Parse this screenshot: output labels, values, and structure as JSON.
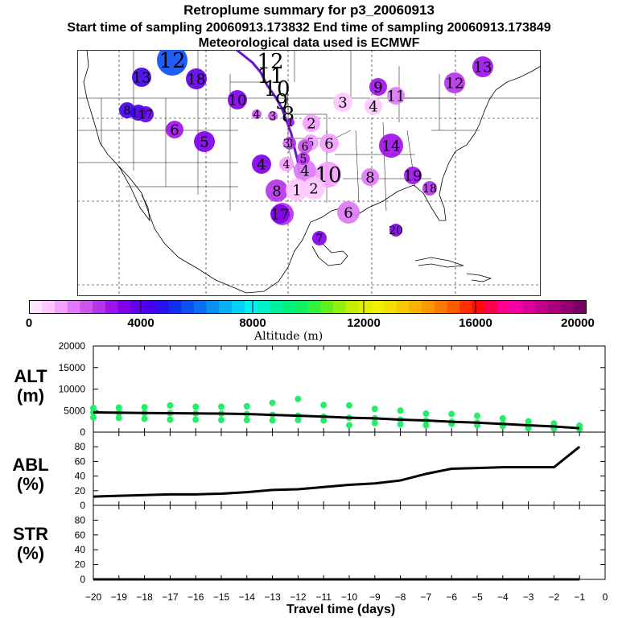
{
  "header": {
    "title": "Retroplume summary for p3_20060913",
    "sampling_line": "Start time of sampling 20060913.173832     End time of sampling 20060913.173849",
    "met_line": "Meteorological data used is ECMWF"
  },
  "map": {
    "markers": [
      {
        "label": "12",
        "alt": 5600
      },
      {
        "label": "13",
        "alt": 4300
      },
      {
        "label": "18",
        "alt": 3900
      },
      {
        "label": "10",
        "alt": 3500
      },
      {
        "label": "8",
        "alt": 4400
      },
      {
        "label": "14",
        "alt": 4200
      },
      {
        "label": "17",
        "alt": 3900
      },
      {
        "label": "6",
        "alt": 3000
      },
      {
        "label": "5",
        "alt": 3300
      },
      {
        "label": "4",
        "alt": 3300
      },
      {
        "label": "8",
        "alt": 2600
      },
      {
        "label": "7",
        "alt": 2700
      },
      {
        "label": "17",
        "alt": 3600
      },
      {
        "label": "12",
        "alt": 1800
      },
      {
        "label": "11",
        "alt": 1800
      },
      {
        "label": "10",
        "alt": 1700
      },
      {
        "label": "9",
        "alt": 1700
      },
      {
        "label": "8",
        "alt": 1700
      },
      {
        "label": "4",
        "alt": 2000
      },
      {
        "label": "3",
        "alt": 2000
      },
      {
        "label": "1",
        "alt": 2800
      },
      {
        "label": "3",
        "alt": 2500
      },
      {
        "label": "2",
        "alt": 1000
      },
      {
        "label": "3",
        "alt": 700
      },
      {
        "label": "4",
        "alt": 800
      },
      {
        "label": "9",
        "alt": 2800
      },
      {
        "label": "11",
        "alt": 1800
      },
      {
        "label": "13",
        "alt": 3100
      },
      {
        "label": "12",
        "alt": 2600
      },
      {
        "label": "14",
        "alt": 3000
      },
      {
        "label": "6",
        "alt": 1300
      },
      {
        "label": "5",
        "alt": 1000
      },
      {
        "label": "4",
        "alt": 1600
      },
      {
        "label": "10",
        "alt": 1100
      },
      {
        "label": "2",
        "alt": 900
      },
      {
        "label": "1",
        "alt": 800
      },
      {
        "label": "4",
        "alt": 1000
      },
      {
        "label": "8",
        "alt": 1800
      },
      {
        "label": "19",
        "alt": 3000
      },
      {
        "label": "18",
        "alt": 2400
      },
      {
        "label": "6",
        "alt": 1500
      },
      {
        "label": "20",
        "alt": 3400
      },
      {
        "label": "7",
        "alt": 3500
      },
      {
        "label": "6",
        "alt": 2000
      },
      {
        "label": "5",
        "alt": 2300
      },
      {
        "label": "3",
        "alt": 1700
      }
    ]
  },
  "colorbar": {
    "title": "Altitude (m)",
    "ticks": [
      "0",
      "4000",
      "8000",
      "12000",
      "16000",
      "20000"
    ],
    "colors": [
      "#ffe6ff",
      "#ffc8ff",
      "#f4a0ff",
      "#e07af8",
      "#cc55f0",
      "#b634ea",
      "#9f12ec",
      "#8200ea",
      "#6200ea",
      "#4700e8",
      "#2a10f0",
      "#1030f0",
      "#0e50f2",
      "#0a70f2",
      "#0a90f2",
      "#06b0f4",
      "#02d0f6",
      "#00f0f4",
      "#00f0c8",
      "#00f0a0",
      "#00f080",
      "#10f060",
      "#30f040",
      "#60f020",
      "#90f010",
      "#c0f000",
      "#e0f000",
      "#f0f000",
      "#f4e000",
      "#f8c800",
      "#fcb000",
      "#ff9800",
      "#ff7a00",
      "#ff5a00",
      "#ff3000",
      "#ff0a10",
      "#ff0050",
      "#ff0090",
      "#f000a8",
      "#d80098",
      "#c00088",
      "#a80078",
      "#900070",
      "#780060"
    ]
  },
  "chart_data": [
    {
      "type": "scatter+line",
      "panel": "altitude",
      "ylabel": "ALT\n(m)",
      "ylabel_lines": [
        "ALT",
        "(m)"
      ],
      "ylim": [
        0,
        20000
      ],
      "yticks": [
        "0",
        "5000",
        "10000",
        "15000",
        "20000"
      ],
      "x": [
        -20,
        -19,
        -18,
        -17,
        -16,
        -15,
        -14,
        -13,
        -12,
        -11,
        -10,
        -9,
        -8,
        -7,
        -6,
        -5,
        -4,
        -3,
        -2,
        -1
      ],
      "series": [
        {
          "name": "median altitude",
          "values": [
            4600,
            4500,
            4450,
            4400,
            4350,
            4300,
            4200,
            4000,
            3800,
            3600,
            3350,
            3200,
            2900,
            2700,
            2400,
            2200,
            1900,
            1600,
            1300,
            900
          ]
        },
        {
          "name": "upper altitude",
          "values": [
            5600,
            5700,
            5800,
            6200,
            5900,
            5900,
            6000,
            6800,
            7700,
            6300,
            6200,
            5400,
            5000,
            4300,
            4200,
            3800,
            3200,
            2500,
            2000,
            1500
          ]
        },
        {
          "name": "lower altitude",
          "values": [
            3400,
            3300,
            3100,
            2900,
            2900,
            2800,
            2800,
            2700,
            2800,
            2700,
            1600,
            2100,
            1800,
            1600,
            1900,
            1600,
            1400,
            900,
            800,
            700
          ]
        }
      ],
      "point_color": "#22ee66"
    },
    {
      "type": "line",
      "panel": "abl",
      "ylabel": "ABL\n(%)",
      "ylabel_lines": [
        "ABL",
        "(%)"
      ],
      "ylim": [
        0,
        100
      ],
      "yticks": [
        "0",
        "20",
        "40",
        "60",
        "80"
      ],
      "x": [
        -20,
        -19,
        -18,
        -17,
        -16,
        -15,
        -14,
        -13,
        -12,
        -11,
        -10,
        -9,
        -8,
        -7,
        -6,
        -5,
        -4,
        -3,
        -2,
        -1
      ],
      "values": [
        12,
        13,
        14,
        15,
        15,
        16,
        18,
        21,
        22,
        25,
        28,
        30,
        34,
        43,
        50,
        51,
        52,
        52,
        52,
        80
      ]
    },
    {
      "type": "line",
      "panel": "str",
      "ylabel": "STR\n(%)",
      "ylabel_lines": [
        "STR",
        "(%)"
      ],
      "ylim": [
        0,
        100
      ],
      "yticks": [
        "0",
        "20",
        "40",
        "60",
        "80"
      ],
      "x": [
        -20,
        -19,
        -18,
        -17,
        -16,
        -15,
        -14,
        -13,
        -12,
        -11,
        -10,
        -9,
        -8,
        -7,
        -6,
        -5,
        -4,
        -3,
        -2,
        -1
      ],
      "values": [
        0,
        0,
        0,
        0,
        0,
        0,
        0,
        0,
        0,
        0,
        0,
        0,
        0,
        0,
        0,
        0,
        0,
        0,
        0,
        0
      ]
    }
  ],
  "xaxis": {
    "label": "Travel time (days)",
    "ticks": [
      "−20",
      "−19",
      "−18",
      "−17",
      "−16",
      "−15",
      "−14",
      "−13",
      "−12",
      "−11",
      "−10",
      "−9",
      "−8",
      "−7",
      "−6",
      "−5",
      "−4",
      "−3",
      "−2",
      "−1",
      "0"
    ]
  }
}
